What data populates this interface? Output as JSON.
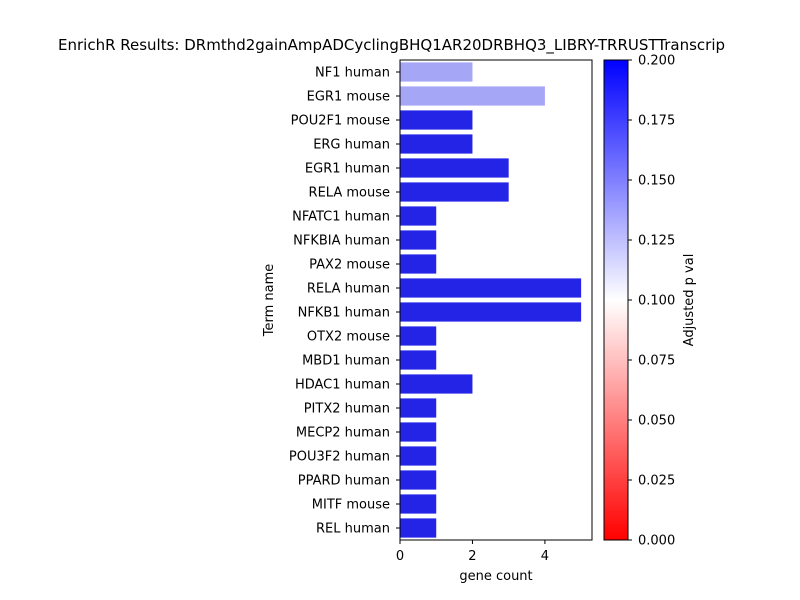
{
  "chart_data": {
    "type": "bar",
    "orientation": "horizontal",
    "title": "EnrichR Results: DRmthd2gainAmpADCyclingBHQ1AR20DRBHQ3_LIBRY-TRRUSTTranscrip",
    "xlabel": "gene count",
    "ylabel": "Term name",
    "xlim": [
      0,
      5.3
    ],
    "xticks": [
      0,
      2,
      4
    ],
    "categories": [
      "NF1 human",
      "EGR1 mouse",
      "POU2F1 mouse",
      "ERG human",
      "EGR1 human",
      "RELA mouse",
      "NFATC1 human",
      "NFKBIA human",
      "PAX2 mouse",
      "RELA human",
      "NFKB1 human",
      "OTX2 mouse",
      "MBD1 human",
      "HDAC1 human",
      "PITX2 human",
      "MECP2 human",
      "POU3F2 human",
      "PPARD human",
      "MITF mouse",
      "REL human"
    ],
    "values": [
      2,
      4,
      2,
      2,
      3,
      3,
      1,
      1,
      1,
      5,
      5,
      1,
      1,
      2,
      1,
      1,
      1,
      1,
      1,
      1
    ],
    "bar_colors": [
      "#a6a6f7",
      "#a6a6f7",
      "#2424e6",
      "#2424e6",
      "#2424e6",
      "#2424e6",
      "#2424e6",
      "#2424e6",
      "#2424e6",
      "#2424e6",
      "#2424e6",
      "#2424e6",
      "#2424e6",
      "#2424e6",
      "#2424e6",
      "#2424e6",
      "#2424e6",
      "#2424e6",
      "#2424e6",
      "#2424e6"
    ],
    "colorbar": {
      "label": "Adjusted p val",
      "range": [
        0,
        0.2
      ],
      "ticks": [
        "0.000",
        "0.025",
        "0.050",
        "0.075",
        "0.100",
        "0.125",
        "0.150",
        "0.175",
        "0.200"
      ],
      "colors": [
        "#ff0000",
        "#ffffff",
        "#0000ff"
      ]
    },
    "grid": false,
    "legend": "colorbar-right"
  }
}
